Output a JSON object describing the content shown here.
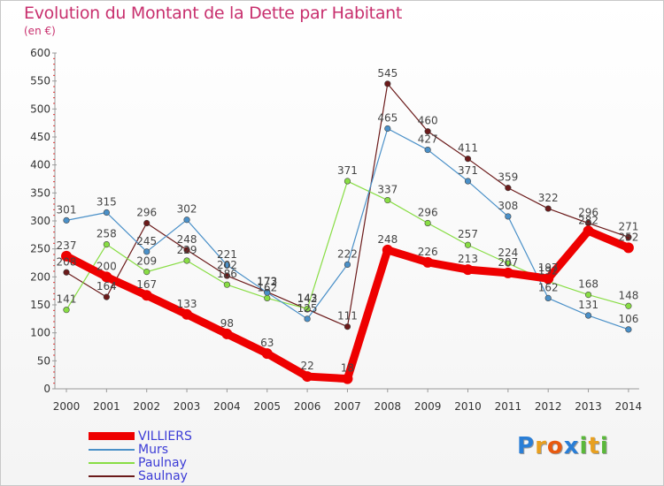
{
  "chart_data": {
    "type": "line",
    "title": "Evolution du Montant de la Dette par Habitant",
    "unit": "(en €)",
    "categories": [
      "2000",
      "2001",
      "2002",
      "2003",
      "2004",
      "2005",
      "2006",
      "2007",
      "2008",
      "2009",
      "2010",
      "2011",
      "2012",
      "2013",
      "2014"
    ],
    "ylim": [
      0,
      600
    ],
    "yticks": [
      0,
      50,
      100,
      150,
      200,
      250,
      300,
      350,
      400,
      450,
      500,
      550,
      600
    ],
    "grid": false,
    "legend_position": "bottom-left",
    "series": [
      {
        "name": "VILLIERS",
        "color": "#ee0000",
        "values": [
          237,
          200,
          167,
          133,
          98,
          63,
          22,
          18,
          248,
          226,
          213,
          207,
          197,
          282,
          252
        ]
      },
      {
        "name": "Murs",
        "color": "#4a90c8",
        "values": [
          301,
          315,
          245,
          302,
          221,
          172,
          125,
          222,
          465,
          427,
          371,
          308,
          162,
          131,
          106
        ]
      },
      {
        "name": "Paulnay",
        "color": "#88dd44",
        "values": [
          141,
          258,
          209,
          229,
          186,
          162,
          143,
          371,
          337,
          296,
          257,
          224,
          192,
          168,
          148
        ]
      },
      {
        "name": "Saulnay",
        "color": "#6b1a1a",
        "values": [
          208,
          164,
          296,
          248,
          202,
          173,
          142,
          111,
          545,
          460,
          411,
          359,
          322,
          296,
          271
        ]
      }
    ]
  },
  "logo": {
    "letters": [
      "P",
      "r",
      "o",
      "x",
      "i",
      "t",
      "i"
    ],
    "colors": [
      "#2a7ed6",
      "#e8a020",
      "#e85a10",
      "#2a7ed6",
      "#5ab83a",
      "#e8a020",
      "#5ab83a"
    ]
  }
}
